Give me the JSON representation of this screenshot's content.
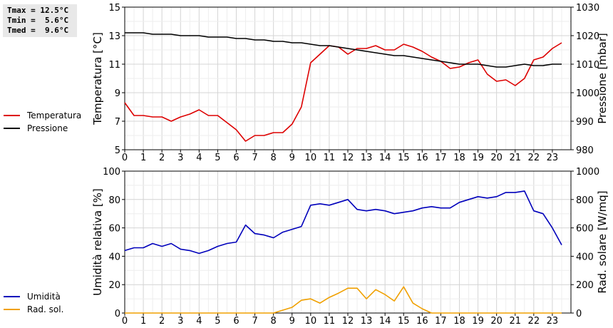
{
  "stats": {
    "tmax": "Tmax = 12.5°C",
    "tmin": "Tmin =  5.6°C",
    "tmed": "Tmed =  9.6°C"
  },
  "chart_data": [
    {
      "type": "line",
      "xlim": [
        0,
        24
      ],
      "x_ticks": [
        "0",
        "1",
        "2",
        "3",
        "4",
        "5",
        "6",
        "7",
        "8",
        "9",
        "10",
        "11",
        "12",
        "13",
        "14",
        "15",
        "16",
        "17",
        "18",
        "19",
        "20",
        "21",
        "22",
        "23"
      ],
      "ylabel": "Temperatura [°C]",
      "ylim": [
        5,
        15
      ],
      "y_ticks": [
        "5",
        "7",
        "9",
        "11",
        "13",
        "15"
      ],
      "y2label": "Pressione [mbar]",
      "y2lim": [
        980,
        1030
      ],
      "y2_ticks": [
        "980",
        "990",
        "1000",
        "1010",
        "1020",
        "1030"
      ],
      "grid": true,
      "legend_placement": "left",
      "series": [
        {
          "name": "Temperatura",
          "color": "#dd0000",
          "axis": "left",
          "x": [
            0,
            0.5,
            1,
            1.5,
            2,
            2.5,
            3,
            3.5,
            4,
            4.5,
            5,
            5.5,
            6,
            6.5,
            7,
            7.5,
            8,
            8.5,
            9,
            9.5,
            10,
            10.5,
            11,
            11.5,
            12,
            12.5,
            13,
            13.5,
            14,
            14.5,
            15,
            15.5,
            16,
            16.5,
            17,
            17.5,
            18,
            18.5,
            19,
            19.5,
            20,
            20.5,
            21,
            21.5,
            22,
            22.5,
            23,
            23.5
          ],
          "values": [
            8.3,
            7.4,
            7.4,
            7.3,
            7.3,
            7.0,
            7.3,
            7.5,
            7.8,
            7.4,
            7.4,
            6.9,
            6.4,
            5.6,
            6.0,
            6.0,
            6.2,
            6.2,
            6.8,
            8.0,
            11.1,
            11.7,
            12.3,
            12.2,
            11.7,
            12.1,
            12.1,
            12.3,
            12.0,
            12.0,
            12.4,
            12.2,
            11.9,
            11.5,
            11.2,
            10.7,
            10.8,
            11.1,
            11.3,
            10.3,
            9.8,
            9.9,
            9.5,
            10.0,
            11.3,
            11.5,
            12.1,
            12.5
          ]
        },
        {
          "name": "Pressione",
          "color": "#000000",
          "axis": "right",
          "x": [
            0,
            0.5,
            1,
            1.5,
            2,
            2.5,
            3,
            3.5,
            4,
            4.5,
            5,
            5.5,
            6,
            6.5,
            7,
            7.5,
            8,
            8.5,
            9,
            9.5,
            10,
            10.5,
            11,
            11.5,
            12,
            12.5,
            13,
            13.5,
            14,
            14.5,
            15,
            15.5,
            16,
            16.5,
            17,
            17.5,
            18,
            18.5,
            19,
            19.5,
            20,
            20.5,
            21,
            21.5,
            22,
            22.5,
            23,
            23.5
          ],
          "values": [
            1021,
            1021,
            1021,
            1020.5,
            1020.5,
            1020.5,
            1020,
            1020,
            1020,
            1019.5,
            1019.5,
            1019.5,
            1019,
            1019,
            1018.5,
            1018.5,
            1018,
            1018,
            1017.5,
            1017.5,
            1017,
            1016.5,
            1016.5,
            1016,
            1015.5,
            1015,
            1014.5,
            1014,
            1013.5,
            1013,
            1013,
            1012.5,
            1012,
            1011.5,
            1011,
            1010.5,
            1010,
            1010,
            1010,
            1009.5,
            1009,
            1009,
            1009.5,
            1010,
            1009.5,
            1009.5,
            1010,
            1010
          ]
        }
      ]
    },
    {
      "type": "line",
      "xlim": [
        0,
        24
      ],
      "x_ticks": [
        "0",
        "1",
        "2",
        "3",
        "4",
        "5",
        "6",
        "7",
        "8",
        "9",
        "10",
        "11",
        "12",
        "13",
        "14",
        "15",
        "16",
        "17",
        "18",
        "19",
        "20",
        "21",
        "22",
        "23"
      ],
      "ylabel": "Umidità relativa [%]",
      "ylim": [
        0,
        100
      ],
      "y_ticks": [
        "0",
        "20",
        "40",
        "60",
        "80",
        "100"
      ],
      "y2label": "Rad. solare [W/mq]",
      "y2lim": [
        0,
        1000
      ],
      "y2_ticks": [
        "0",
        "200",
        "400",
        "600",
        "800",
        "1000"
      ],
      "grid": true,
      "legend_placement": "left",
      "series": [
        {
          "name": "Umidità",
          "color": "#0000bb",
          "axis": "left",
          "x": [
            0,
            0.5,
            1,
            1.5,
            2,
            2.5,
            3,
            3.5,
            4,
            4.5,
            5,
            5.5,
            6,
            6.5,
            7,
            7.5,
            8,
            8.5,
            9,
            9.5,
            10,
            10.5,
            11,
            11.5,
            12,
            12.5,
            13,
            13.5,
            14,
            14.5,
            15,
            15.5,
            16,
            16.5,
            17,
            17.5,
            18,
            18.5,
            19,
            19.5,
            20,
            20.5,
            21,
            21.5,
            22,
            22.5,
            23,
            23.5
          ],
          "values": [
            44,
            46,
            46,
            49,
            47,
            49,
            45,
            44,
            42,
            44,
            47,
            49,
            50,
            62,
            56,
            55,
            53,
            57,
            59,
            61,
            76,
            77,
            76,
            78,
            80,
            73,
            72,
            73,
            72,
            70,
            71,
            72,
            74,
            75,
            74,
            74,
            78,
            80,
            82,
            81,
            82,
            85,
            85,
            86,
            72,
            70,
            60,
            48
          ]
        },
        {
          "name": "Rad. sol.",
          "color": "#f0a000",
          "axis": "right",
          "x": [
            0,
            0.5,
            1,
            1.5,
            2,
            2.5,
            3,
            3.5,
            4,
            4.5,
            5,
            5.5,
            6,
            6.5,
            7,
            7.5,
            8,
            8.5,
            9,
            9.5,
            10,
            10.5,
            11,
            11.5,
            12,
            12.5,
            13,
            13.5,
            14,
            14.5,
            15,
            15.5,
            16,
            16.5,
            17,
            17.5,
            18,
            18.5,
            19,
            19.5,
            20,
            20.5,
            21,
            21.5,
            22,
            22.5,
            23,
            23.5
          ],
          "values": [
            0,
            0,
            0,
            0,
            0,
            0,
            0,
            0,
            0,
            0,
            0,
            0,
            0,
            0,
            0,
            0,
            0,
            20,
            40,
            90,
            100,
            70,
            110,
            140,
            175,
            175,
            100,
            165,
            130,
            85,
            185,
            70,
            30,
            0,
            0,
            0,
            0,
            0,
            0,
            0,
            0,
            0,
            0,
            0,
            0,
            0,
            0,
            0
          ]
        }
      ]
    }
  ]
}
